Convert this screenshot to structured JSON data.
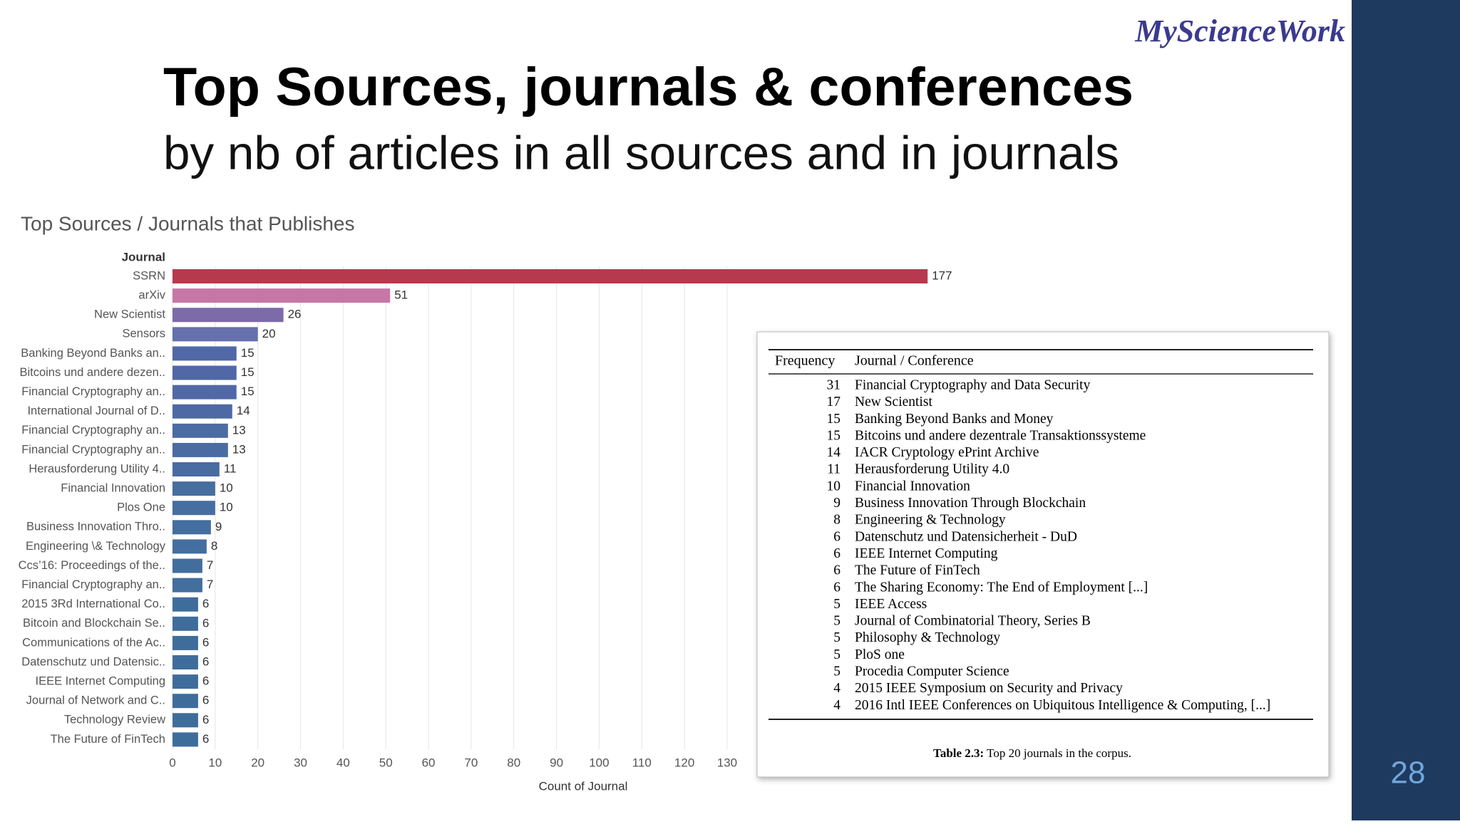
{
  "slide": {
    "title": "Top Sources, journals & conferences",
    "subtitle": "by nb of articles in all sources and in journals",
    "logo": "MyScienceWork",
    "page_number": "28"
  },
  "chart_data": {
    "type": "hbar",
    "title": "Top Sources / Journals that Publishes",
    "y_label": "Journal",
    "x_label": "Count of Journal",
    "categories": [
      "SSRN",
      "arXiv",
      "New Scientist",
      "Sensors",
      "Banking Beyond Banks an..",
      "Bitcoins und andere dezen..",
      "Financial Cryptography an..",
      "International Journal of D..",
      "Financial Cryptography an..",
      "Financial Cryptography an..",
      "Herausforderung Utility 4..",
      "Financial Innovation",
      "Plos One",
      "Business Innovation Thro..",
      "Engineering \\& Technology",
      "Ccs’16: Proceedings of the..",
      "Financial Cryptography an..",
      "2015 3Rd International Co..",
      "Bitcoin and Blockchain Se..",
      "Communications of the Ac..",
      "Datenschutz und Datensic..",
      "IEEE Internet Computing",
      "Journal of Network and C..",
      "Technology Review",
      "The Future of FinTech"
    ],
    "values": [
      177,
      51,
      26,
      20,
      15,
      15,
      15,
      14,
      13,
      13,
      11,
      10,
      10,
      9,
      8,
      7,
      7,
      6,
      6,
      6,
      6,
      6,
      6,
      6,
      6
    ],
    "colors": [
      "#b7394e",
      "#c677a6",
      "#7d6aa9",
      "#6670ad",
      "#5168a6",
      "#5168a6",
      "#5168a6",
      "#4d6aa4",
      "#4b6ba3",
      "#4b6ba3",
      "#486ca1",
      "#466ea0",
      "#466ea0",
      "#446e9f",
      "#446e9f",
      "#426e9d",
      "#426e9d",
      "#3f6d9b",
      "#3f6d9b",
      "#3f6d9b",
      "#3f6d9b",
      "#3f6d9b",
      "#3f6d9b",
      "#3f6d9b",
      "#3f6d9b"
    ],
    "xlim": [
      0,
      190
    ],
    "xticks": [
      0,
      10,
      20,
      30,
      40,
      50,
      60,
      70,
      80,
      90,
      100,
      110,
      120,
      130
    ],
    "grid": true
  },
  "table": {
    "header": [
      "Frequency",
      "Journal / Conference"
    ],
    "rows": [
      [
        "31",
        "Financial Cryptography and Data Security"
      ],
      [
        "17",
        "New Scientist"
      ],
      [
        "15",
        "Banking Beyond Banks and Money"
      ],
      [
        "15",
        "Bitcoins und andere dezentrale Transaktionssysteme"
      ],
      [
        "14",
        "IACR Cryptology ePrint Archive"
      ],
      [
        "11",
        "Herausforderung Utility 4.0"
      ],
      [
        "10",
        "Financial Innovation"
      ],
      [
        "9",
        "Business Innovation Through Blockchain"
      ],
      [
        "8",
        "Engineering & Technology"
      ],
      [
        "6",
        "Datenschutz und Datensicherheit - DuD"
      ],
      [
        "6",
        "IEEE Internet Computing"
      ],
      [
        "6",
        "The Future of FinTech"
      ],
      [
        "6",
        "The Sharing Economy: The End of Employment [...]"
      ],
      [
        "5",
        "IEEE Access"
      ],
      [
        "5",
        "Journal of Combinatorial Theory, Series B"
      ],
      [
        "5",
        "Philosophy & Technology"
      ],
      [
        "5",
        "PloS one"
      ],
      [
        "5",
        "Procedia Computer Science"
      ],
      [
        "4",
        "2015 IEEE Symposium on Security and Privacy"
      ],
      [
        "4",
        "2016 Intl IEEE Conferences on Ubiquitous Intelligence & Computing, [...]"
      ]
    ],
    "caption_label": "Table 2.3:",
    "caption_text": "Top 20 journals in the corpus."
  }
}
